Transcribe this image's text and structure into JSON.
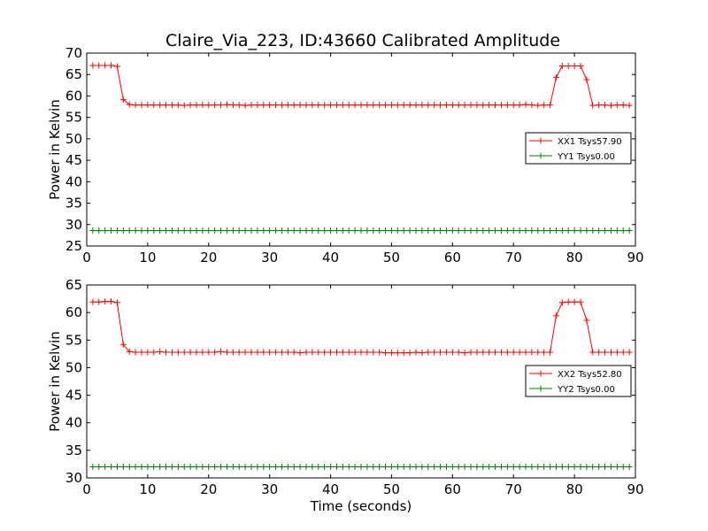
{
  "title": "Claire_Via_223, ID:43660 Calibrated Amplitude",
  "chart_data": [
    {
      "type": "line",
      "title": "Claire_Via_223, ID:43660 Calibrated Amplitude",
      "xlabel": "",
      "ylabel": "Power in Kelvin",
      "xlim": [
        0,
        90
      ],
      "ylim": [
        25,
        70
      ],
      "xticks": [
        0,
        10,
        20,
        30,
        40,
        50,
        60,
        70,
        80,
        90
      ],
      "yticks": [
        25,
        30,
        35,
        40,
        45,
        50,
        55,
        60,
        65,
        70
      ],
      "grid": false,
      "legend_position": "right",
      "x": [
        1,
        2,
        3,
        4,
        5,
        6,
        7,
        8,
        9,
        10,
        11,
        12,
        13,
        14,
        15,
        16,
        17,
        18,
        19,
        20,
        21,
        22,
        23,
        24,
        25,
        26,
        27,
        28,
        29,
        30,
        31,
        32,
        33,
        34,
        35,
        36,
        37,
        38,
        39,
        40,
        41,
        42,
        43,
        44,
        45,
        46,
        47,
        48,
        49,
        50,
        51,
        52,
        53,
        54,
        55,
        56,
        57,
        58,
        59,
        60,
        61,
        62,
        63,
        64,
        65,
        66,
        67,
        68,
        69,
        70,
        71,
        72,
        73,
        74,
        75,
        76,
        77,
        78,
        79,
        80,
        81,
        82,
        83,
        84,
        85,
        86,
        87,
        88,
        89
      ],
      "series": [
        {
          "name": "XX1 Tsys57.90",
          "color": "#ff0000",
          "values": [
            67.1,
            67.1,
            67.1,
            67.1,
            66.9,
            59.2,
            58.0,
            57.9,
            57.9,
            57.9,
            57.9,
            57.9,
            57.9,
            57.9,
            57.9,
            57.8,
            57.9,
            57.9,
            57.9,
            57.9,
            57.9,
            57.9,
            58.0,
            57.9,
            57.9,
            57.8,
            57.9,
            57.9,
            57.9,
            57.9,
            57.9,
            57.9,
            57.9,
            57.9,
            57.9,
            57.9,
            57.9,
            57.9,
            57.9,
            57.9,
            57.9,
            57.9,
            57.9,
            57.9,
            57.9,
            57.9,
            57.9,
            57.9,
            57.9,
            57.9,
            57.9,
            57.9,
            57.9,
            57.9,
            57.9,
            57.9,
            57.9,
            57.9,
            57.9,
            57.9,
            57.9,
            57.9,
            57.9,
            57.9,
            57.9,
            57.9,
            57.9,
            57.9,
            57.9,
            57.9,
            57.9,
            58.0,
            57.9,
            57.8,
            57.9,
            57.9,
            64.3,
            67.0,
            67.0,
            67.0,
            67.0,
            63.8,
            57.8,
            57.9,
            57.9,
            57.8,
            57.9,
            57.9,
            57.8
          ]
        },
        {
          "name": "YY1 Tsys0.00",
          "color": "#008000",
          "values": [
            28.6,
            28.6,
            28.6,
            28.6,
            28.6,
            28.6,
            28.6,
            28.6,
            28.6,
            28.6,
            28.6,
            28.6,
            28.6,
            28.6,
            28.6,
            28.6,
            28.6,
            28.6,
            28.6,
            28.6,
            28.6,
            28.6,
            28.6,
            28.6,
            28.6,
            28.6,
            28.6,
            28.6,
            28.6,
            28.6,
            28.6,
            28.6,
            28.6,
            28.6,
            28.6,
            28.6,
            28.6,
            28.6,
            28.6,
            28.6,
            28.6,
            28.6,
            28.6,
            28.6,
            28.6,
            28.6,
            28.6,
            28.6,
            28.6,
            28.6,
            28.6,
            28.6,
            28.6,
            28.6,
            28.6,
            28.6,
            28.6,
            28.6,
            28.6,
            28.6,
            28.6,
            28.6,
            28.6,
            28.6,
            28.6,
            28.6,
            28.6,
            28.6,
            28.6,
            28.6,
            28.6,
            28.6,
            28.6,
            28.6,
            28.6,
            28.6,
            28.6,
            28.6,
            28.6,
            28.6,
            28.6,
            28.6,
            28.6,
            28.6,
            28.6,
            28.6,
            28.6,
            28.6,
            28.6
          ]
        }
      ]
    },
    {
      "type": "line",
      "title": "",
      "xlabel": "Time (seconds)",
      "ylabel": "Power in Kelvin",
      "xlim": [
        0,
        90
      ],
      "ylim": [
        30,
        65
      ],
      "xticks": [
        0,
        10,
        20,
        30,
        40,
        50,
        60,
        70,
        80,
        90
      ],
      "yticks": [
        30,
        35,
        40,
        45,
        50,
        55,
        60,
        65
      ],
      "grid": false,
      "legend_position": "right",
      "x": [
        1,
        2,
        3,
        4,
        5,
        6,
        7,
        8,
        9,
        10,
        11,
        12,
        13,
        14,
        15,
        16,
        17,
        18,
        19,
        20,
        21,
        22,
        23,
        24,
        25,
        26,
        27,
        28,
        29,
        30,
        31,
        32,
        33,
        34,
        35,
        36,
        37,
        38,
        39,
        40,
        41,
        42,
        43,
        44,
        45,
        46,
        47,
        48,
        49,
        50,
        51,
        52,
        53,
        54,
        55,
        56,
        57,
        58,
        59,
        60,
        61,
        62,
        63,
        64,
        65,
        66,
        67,
        68,
        69,
        70,
        71,
        72,
        73,
        74,
        75,
        76,
        77,
        78,
        79,
        80,
        81,
        82,
        83,
        84,
        85,
        86,
        87,
        88,
        89
      ],
      "series": [
        {
          "name": "XX2 Tsys52.80",
          "color": "#ff0000",
          "values": [
            61.9,
            61.9,
            62.0,
            62.0,
            61.8,
            54.2,
            52.9,
            52.8,
            52.8,
            52.8,
            52.8,
            52.9,
            52.8,
            52.8,
            52.8,
            52.8,
            52.8,
            52.8,
            52.8,
            52.8,
            52.8,
            52.9,
            52.8,
            52.8,
            52.8,
            52.8,
            52.8,
            52.8,
            52.8,
            52.8,
            52.8,
            52.8,
            52.8,
            52.8,
            52.7,
            52.8,
            52.8,
            52.8,
            52.8,
            52.8,
            52.8,
            52.8,
            52.8,
            52.8,
            52.8,
            52.8,
            52.8,
            52.8,
            52.7,
            52.7,
            52.7,
            52.7,
            52.7,
            52.8,
            52.7,
            52.8,
            52.8,
            52.8,
            52.8,
            52.8,
            52.8,
            52.7,
            52.8,
            52.8,
            52.8,
            52.8,
            52.8,
            52.8,
            52.8,
            52.8,
            52.8,
            52.8,
            52.8,
            52.8,
            52.8,
            52.8,
            59.4,
            61.8,
            61.9,
            61.9,
            61.9,
            58.6,
            52.8,
            52.8,
            52.8,
            52.8,
            52.8,
            52.8,
            52.8
          ]
        },
        {
          "name": "YY2 Tsys0.00",
          "color": "#008000",
          "values": [
            32.0,
            32.0,
            32.0,
            32.0,
            32.0,
            32.0,
            32.0,
            32.0,
            32.0,
            32.0,
            32.0,
            32.0,
            32.0,
            32.0,
            32.0,
            32.0,
            32.0,
            32.0,
            32.0,
            32.0,
            32.0,
            32.0,
            32.0,
            32.0,
            32.0,
            32.0,
            32.0,
            32.0,
            32.0,
            32.0,
            32.0,
            32.0,
            32.0,
            32.0,
            32.0,
            32.0,
            32.0,
            32.0,
            32.0,
            32.0,
            32.0,
            32.0,
            32.0,
            32.0,
            32.0,
            32.0,
            32.0,
            32.0,
            32.0,
            32.0,
            32.0,
            32.0,
            32.0,
            32.0,
            32.0,
            32.0,
            32.0,
            32.0,
            32.0,
            32.0,
            32.0,
            32.0,
            32.0,
            32.0,
            32.0,
            32.0,
            32.0,
            32.0,
            32.0,
            32.0,
            32.0,
            32.0,
            32.0,
            32.0,
            32.0,
            32.0,
            32.0,
            32.0,
            32.0,
            32.0,
            32.0,
            32.0,
            32.0,
            32.0,
            32.0,
            32.0,
            32.0,
            32.0,
            32.0
          ]
        }
      ]
    }
  ]
}
